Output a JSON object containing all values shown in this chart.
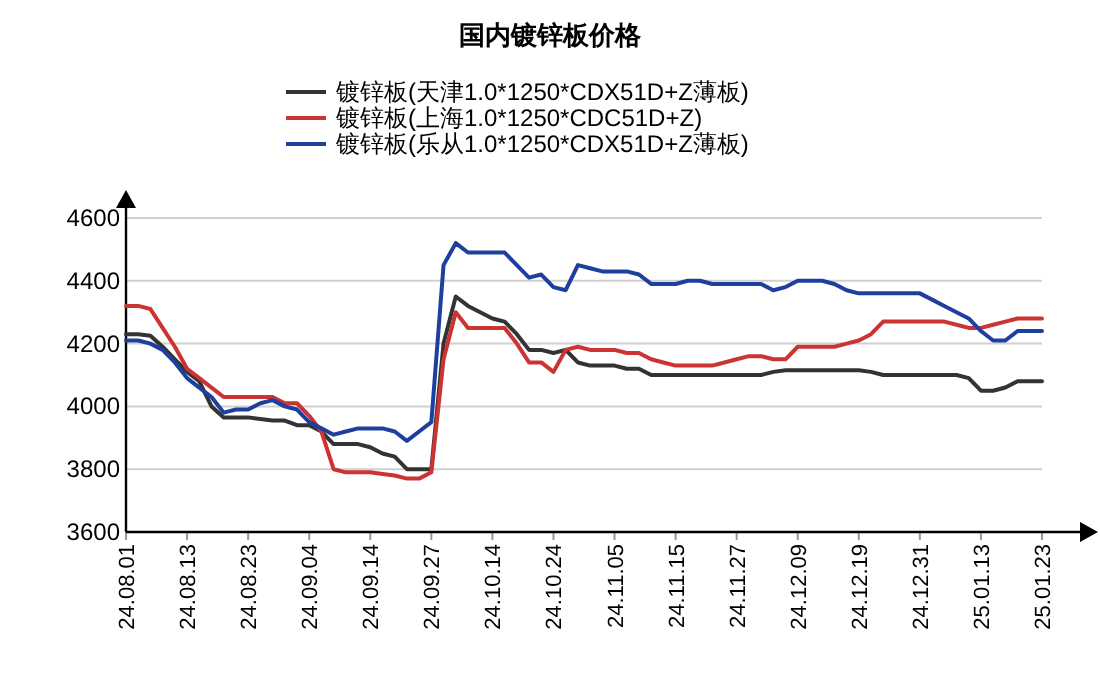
{
  "chart_data": {
    "type": "line",
    "title": "国内镀锌板价格",
    "categories": [
      "24.08.01",
      null,
      null,
      null,
      null,
      "24.08.13",
      null,
      null,
      null,
      null,
      "24.08.23",
      null,
      null,
      null,
      null,
      "24.09.04",
      null,
      null,
      null,
      null,
      "24.09.14",
      null,
      null,
      null,
      null,
      "24.09.27",
      null,
      null,
      null,
      null,
      "24.10.14",
      null,
      null,
      null,
      null,
      "24.10.24",
      null,
      null,
      null,
      null,
      "24.11.05",
      null,
      null,
      null,
      null,
      "24.11.15",
      null,
      null,
      null,
      null,
      "24.11.27",
      null,
      null,
      null,
      null,
      "24.12.09",
      null,
      null,
      null,
      null,
      "24.12.19",
      null,
      null,
      null,
      null,
      "24.12.31",
      null,
      null,
      null,
      null,
      "25.01.13",
      null,
      null,
      null,
      null,
      "25.01.23"
    ],
    "series": [
      {
        "name": "镀锌板(天津1.0*1250*CDX51D+Z薄板)",
        "color": "#333333",
        "values": [
          4230,
          4230,
          4225,
          4190,
          4150,
          4110,
          4080,
          4000,
          3965,
          3965,
          3965,
          3960,
          3955,
          3955,
          3940,
          3940,
          3920,
          3880,
          3880,
          3880,
          3870,
          3850,
          3840,
          3800,
          3800,
          3800,
          4200,
          4350,
          4320,
          4300,
          4280,
          4270,
          4230,
          4180,
          4180,
          4170,
          4180,
          4140,
          4130,
          4130,
          4130,
          4120,
          4120,
          4100,
          4100,
          4100,
          4100,
          4100,
          4100,
          4100,
          4100,
          4100,
          4100,
          4110,
          4115,
          4115,
          4115,
          4115,
          4115,
          4115,
          4115,
          4110,
          4100,
          4100,
          4100,
          4100,
          4100,
          4100,
          4100,
          4090,
          4050,
          4050,
          4060,
          4080,
          4080,
          4080
        ]
      },
      {
        "name": "镀锌板(上海1.0*1250*CDC51D+Z)",
        "color": "#cc3333",
        "values": [
          4320,
          4320,
          4310,
          4250,
          4190,
          4120,
          4090,
          4060,
          4030,
          4030,
          4030,
          4030,
          4030,
          4010,
          4010,
          3970,
          3920,
          3800,
          3790,
          3790,
          3790,
          3785,
          3780,
          3770,
          3770,
          3790,
          4150,
          4300,
          4250,
          4250,
          4250,
          4250,
          4200,
          4140,
          4140,
          4110,
          4180,
          4190,
          4180,
          4180,
          4180,
          4170,
          4170,
          4150,
          4140,
          4130,
          4130,
          4130,
          4130,
          4140,
          4150,
          4160,
          4160,
          4150,
          4150,
          4190,
          4190,
          4190,
          4190,
          4200,
          4210,
          4230,
          4270,
          4270,
          4270,
          4270,
          4270,
          4270,
          4260,
          4250,
          4250,
          4260,
          4270,
          4280,
          4280,
          4280
        ]
      },
      {
        "name": "镀锌板(乐从1.0*1250*CDX51D+Z薄板)",
        "color": "#1f3f9f",
        "values": [
          4210,
          4210,
          4200,
          4180,
          4140,
          4090,
          4060,
          4030,
          3980,
          3990,
          3990,
          4010,
          4020,
          4000,
          3990,
          3950,
          3930,
          3910,
          3920,
          3930,
          3930,
          3930,
          3920,
          3890,
          3920,
          3950,
          4450,
          4520,
          4490,
          4490,
          4490,
          4490,
          4450,
          4410,
          4420,
          4380,
          4370,
          4450,
          4440,
          4430,
          4430,
          4430,
          4420,
          4390,
          4390,
          4390,
          4400,
          4400,
          4390,
          4390,
          4390,
          4390,
          4390,
          4370,
          4380,
          4400,
          4400,
          4400,
          4390,
          4370,
          4360,
          4360,
          4360,
          4360,
          4360,
          4360,
          4340,
          4320,
          4300,
          4280,
          4240,
          4210,
          4210,
          4240,
          4240,
          4240
        ]
      }
    ],
    "ylim": [
      3600,
      4600
    ],
    "yticks": [
      3600,
      3800,
      4000,
      4200,
      4400,
      4600
    ],
    "grid": "y",
    "legend": "top"
  }
}
